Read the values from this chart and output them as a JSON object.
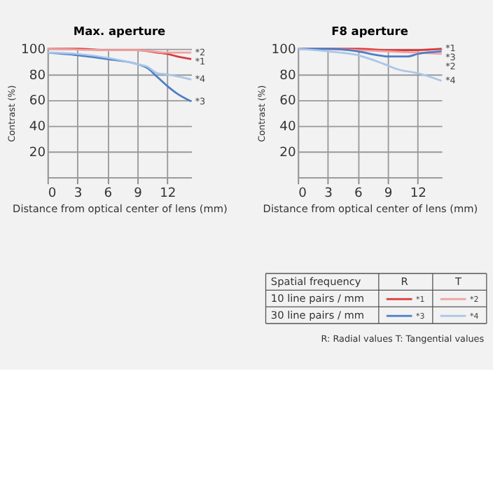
{
  "chart_data": [
    {
      "type": "line",
      "title": "Max. aperture",
      "xlabel": "Distance from optical center of lens (mm)",
      "ylabel": "Contrast (%)",
      "xlim": [
        0,
        14.4
      ],
      "xticks": [
        0,
        3,
        6,
        9,
        12
      ],
      "ylim": [
        0,
        100
      ],
      "yticks": [
        {
          "value": 0,
          "label": null
        },
        20,
        40,
        60,
        80,
        100
      ],
      "grid": true,
      "marker": "none",
      "line_style": "solid",
      "series": [
        {
          "name": "*1",
          "color": "#d9383a",
          "x": [
            0,
            3,
            6,
            9,
            11,
            12,
            13,
            14.4
          ],
          "values": [
            100,
            100,
            99,
            99,
            97,
            96,
            94,
            92
          ]
        },
        {
          "name": "*2",
          "color": "#f0a0a0",
          "x": [
            0,
            6,
            9,
            12,
            14.4
          ],
          "values": [
            100,
            99,
            99,
            97,
            97
          ]
        },
        {
          "name": "*3",
          "color": "#4a7fc8",
          "x": [
            0,
            3,
            6,
            9,
            10,
            11,
            12,
            13,
            14.4
          ],
          "values": [
            97,
            95,
            92,
            88,
            85,
            78,
            71,
            65,
            59
          ]
        },
        {
          "name": "*4",
          "color": "#a9c6e8",
          "x": [
            0,
            3,
            6,
            9,
            10,
            11,
            12,
            14.4
          ],
          "values": [
            97,
            96,
            93,
            88,
            86,
            81,
            80,
            76
          ]
        }
      ]
    },
    {
      "type": "line",
      "title": "F8 aperture",
      "xlabel": "Distance from optical center of lens (mm)",
      "ylabel": "Contrast (%)",
      "xlim": [
        0,
        14.4
      ],
      "xticks": [
        0,
        3,
        6,
        9,
        12
      ],
      "ylim": [
        0,
        100
      ],
      "yticks": [
        {
          "value": 0,
          "label": null
        },
        20,
        40,
        60,
        80,
        100
      ],
      "grid": true,
      "legend": "bottom right",
      "marker": "none",
      "line_style": "solid",
      "series": [
        {
          "name": "*1",
          "color": "#d9383a",
          "x": [
            0,
            6,
            9,
            12,
            14.4
          ],
          "values": [
            100,
            100,
            99,
            99,
            100
          ]
        },
        {
          "name": "*2",
          "color": "#f0a0a0",
          "x": [
            0,
            6,
            9,
            12,
            14.4
          ],
          "values": [
            100,
            99,
            98,
            97,
            96
          ]
        },
        {
          "name": "*3",
          "color": "#4a7fc8",
          "x": [
            0,
            3,
            6,
            8,
            9,
            10,
            11,
            12,
            14.4
          ],
          "values": [
            100,
            100,
            98,
            95,
            94,
            94,
            94,
            96,
            98
          ]
        },
        {
          "name": "*4",
          "color": "#a9c6e8",
          "x": [
            0,
            3,
            6,
            8,
            9,
            10,
            12,
            14.4
          ],
          "values": [
            100,
            98,
            95,
            90,
            87,
            84,
            81,
            75
          ]
        }
      ],
      "annotations": [
        "Spatial frequency",
        "R",
        "T",
        "10 line pairs / mm",
        "30 line pairs / mm",
        "R: Radial values  T: Tangential values"
      ]
    }
  ]
}
